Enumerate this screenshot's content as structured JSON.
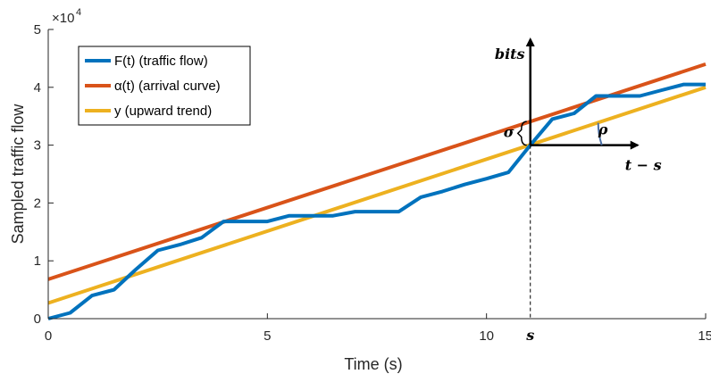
{
  "chart_data": {
    "type": "line",
    "xlabel": "Time (s)",
    "ylabel": "Sampled traffic flow",
    "y_exponent_label": "×10",
    "y_exponent_power": "4",
    "xlim": [
      0,
      15
    ],
    "ylim": [
      0,
      50000
    ],
    "x_ticks": [
      0,
      5,
      10,
      15
    ],
    "x_tick_labels": [
      "0",
      "5",
      "10",
      "15"
    ],
    "y_ticks": [
      0,
      10000,
      20000,
      30000,
      40000,
      50000
    ],
    "y_tick_labels": [
      "0",
      "1",
      "2",
      "3",
      "4",
      "5"
    ],
    "grid": false,
    "legend_position": "top-left",
    "series": [
      {
        "name": "F(t) (traffic flow)",
        "color": "#0072BD",
        "x": [
          0,
          0.5,
          1,
          1.5,
          2,
          2.5,
          3,
          3.5,
          4,
          4.5,
          5,
          5.5,
          6,
          6.5,
          7,
          7.5,
          8,
          8.5,
          9,
          9.5,
          10,
          10.5,
          11,
          11.5,
          12,
          12.5,
          13,
          13.5,
          14,
          14.5,
          15
        ],
        "values": [
          0,
          1000,
          4000,
          5000,
          8500,
          11800,
          12800,
          14000,
          16800,
          16800,
          16800,
          17800,
          17800,
          17800,
          18500,
          18500,
          18500,
          21000,
          22000,
          23200,
          24200,
          25300,
          30000,
          34500,
          35500,
          38500,
          38500,
          38500,
          39500,
          40500,
          40500
        ]
      },
      {
        "name": "α(t) (arrival curve)",
        "color": "#D95319",
        "x": [
          0,
          15
        ],
        "values": [
          6800,
          44000
        ]
      },
      {
        "name": "y (upward trend)",
        "color": "#EDB120",
        "x": [
          0,
          15
        ],
        "values": [
          2700,
          40000
        ]
      }
    ],
    "annotations": {
      "bits": "bits",
      "t_minus_s": "t − s",
      "sigma": "σ",
      "rho": "ρ",
      "s": "s",
      "s_x": 11,
      "origin_y": 30000
    }
  }
}
